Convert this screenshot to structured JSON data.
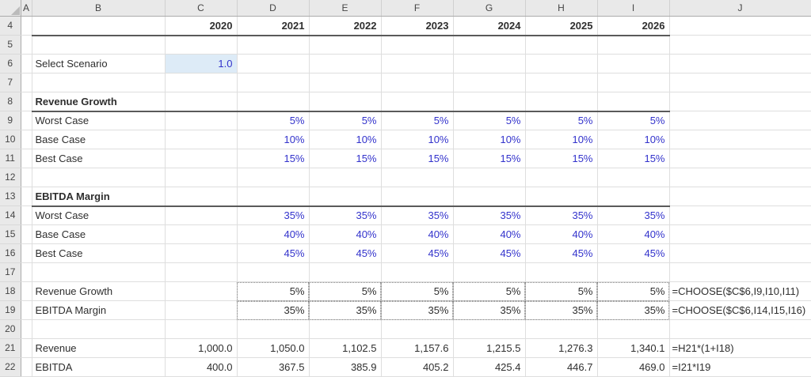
{
  "colors": {
    "input_blue": "#3333CC",
    "formula_text": "#2E2E2E",
    "scenario_cell_fill": "#DDEBF7",
    "header_bg": "#E9E9E9",
    "gridline": "#DEDEDE",
    "section_rule": "#5A5A5A"
  },
  "sheet": {
    "corner_icon": "select-all-triangle",
    "column_headers": [
      "A",
      "B",
      "C",
      "D",
      "E",
      "F",
      "G",
      "H",
      "I",
      "J"
    ],
    "rows": [
      {
        "num": "4",
        "cls": "rule",
        "cells": [
          {
            "col": "C",
            "text": "2020",
            "cls": "num bold"
          },
          {
            "col": "D",
            "text": "2021",
            "cls": "num bold"
          },
          {
            "col": "E",
            "text": "2022",
            "cls": "num bold"
          },
          {
            "col": "F",
            "text": "2023",
            "cls": "num bold"
          },
          {
            "col": "G",
            "text": "2024",
            "cls": "num bold"
          },
          {
            "col": "H",
            "text": "2025",
            "cls": "num bold"
          },
          {
            "col": "I",
            "text": "2026",
            "cls": "num bold"
          }
        ]
      },
      {
        "num": "5",
        "cells": []
      },
      {
        "num": "6",
        "cells": [
          {
            "col": "B",
            "text": "Select Scenario",
            "cls": "label"
          },
          {
            "col": "C",
            "text": "1.0",
            "cls": "num blue fill"
          }
        ]
      },
      {
        "num": "7",
        "cells": []
      },
      {
        "num": "8",
        "cls": "rule",
        "cells": [
          {
            "col": "B",
            "text": "Revenue Growth",
            "cls": "label bold"
          }
        ]
      },
      {
        "num": "9",
        "cells": [
          {
            "col": "B",
            "text": "Worst Case",
            "cls": "label"
          },
          {
            "col": "D",
            "text": "5%",
            "cls": "num blue"
          },
          {
            "col": "E",
            "text": "5%",
            "cls": "num blue"
          },
          {
            "col": "F",
            "text": "5%",
            "cls": "num blue"
          },
          {
            "col": "G",
            "text": "5%",
            "cls": "num blue"
          },
          {
            "col": "H",
            "text": "5%",
            "cls": "num blue"
          },
          {
            "col": "I",
            "text": "5%",
            "cls": "num blue"
          }
        ]
      },
      {
        "num": "10",
        "cells": [
          {
            "col": "B",
            "text": "Base Case",
            "cls": "label"
          },
          {
            "col": "D",
            "text": "10%",
            "cls": "num blue"
          },
          {
            "col": "E",
            "text": "10%",
            "cls": "num blue"
          },
          {
            "col": "F",
            "text": "10%",
            "cls": "num blue"
          },
          {
            "col": "G",
            "text": "10%",
            "cls": "num blue"
          },
          {
            "col": "H",
            "text": "10%",
            "cls": "num blue"
          },
          {
            "col": "I",
            "text": "10%",
            "cls": "num blue"
          }
        ]
      },
      {
        "num": "11",
        "cells": [
          {
            "col": "B",
            "text": "Best Case",
            "cls": "label"
          },
          {
            "col": "D",
            "text": "15%",
            "cls": "num blue"
          },
          {
            "col": "E",
            "text": "15%",
            "cls": "num blue"
          },
          {
            "col": "F",
            "text": "15%",
            "cls": "num blue"
          },
          {
            "col": "G",
            "text": "15%",
            "cls": "num blue"
          },
          {
            "col": "H",
            "text": "15%",
            "cls": "num blue"
          },
          {
            "col": "I",
            "text": "15%",
            "cls": "num blue"
          }
        ]
      },
      {
        "num": "12",
        "cells": []
      },
      {
        "num": "13",
        "cls": "rule",
        "cells": [
          {
            "col": "B",
            "text": "EBITDA Margin",
            "cls": "label bold"
          }
        ]
      },
      {
        "num": "14",
        "cells": [
          {
            "col": "B",
            "text": "Worst Case",
            "cls": "label"
          },
          {
            "col": "D",
            "text": "35%",
            "cls": "num blue"
          },
          {
            "col": "E",
            "text": "35%",
            "cls": "num blue"
          },
          {
            "col": "F",
            "text": "35%",
            "cls": "num blue"
          },
          {
            "col": "G",
            "text": "35%",
            "cls": "num blue"
          },
          {
            "col": "H",
            "text": "35%",
            "cls": "num blue"
          },
          {
            "col": "I",
            "text": "35%",
            "cls": "num blue"
          }
        ]
      },
      {
        "num": "15",
        "cells": [
          {
            "col": "B",
            "text": "Base Case",
            "cls": "label"
          },
          {
            "col": "D",
            "text": "40%",
            "cls": "num blue"
          },
          {
            "col": "E",
            "text": "40%",
            "cls": "num blue"
          },
          {
            "col": "F",
            "text": "40%",
            "cls": "num blue"
          },
          {
            "col": "G",
            "text": "40%",
            "cls": "num blue"
          },
          {
            "col": "H",
            "text": "40%",
            "cls": "num blue"
          },
          {
            "col": "I",
            "text": "40%",
            "cls": "num blue"
          }
        ]
      },
      {
        "num": "16",
        "cells": [
          {
            "col": "B",
            "text": "Best Case",
            "cls": "label"
          },
          {
            "col": "D",
            "text": "45%",
            "cls": "num blue"
          },
          {
            "col": "E",
            "text": "45%",
            "cls": "num blue"
          },
          {
            "col": "F",
            "text": "45%",
            "cls": "num blue"
          },
          {
            "col": "G",
            "text": "45%",
            "cls": "num blue"
          },
          {
            "col": "H",
            "text": "45%",
            "cls": "num blue"
          },
          {
            "col": "I",
            "text": "45%",
            "cls": "num blue"
          }
        ]
      },
      {
        "num": "17",
        "cells": []
      },
      {
        "num": "18",
        "cells": [
          {
            "col": "B",
            "text": "Revenue Growth",
            "cls": "label"
          },
          {
            "col": "D",
            "text": "5%",
            "cls": "num dotted"
          },
          {
            "col": "E",
            "text": "5%",
            "cls": "num dotted"
          },
          {
            "col": "F",
            "text": "5%",
            "cls": "num dotted"
          },
          {
            "col": "G",
            "text": "5%",
            "cls": "num dotted"
          },
          {
            "col": "H",
            "text": "5%",
            "cls": "num dotted"
          },
          {
            "col": "I",
            "text": "5%",
            "cls": "num dotted"
          },
          {
            "col": "J",
            "text": "=CHOOSE($C$6,I9,I10,I11)",
            "cls": "formula"
          }
        ]
      },
      {
        "num": "19",
        "cells": [
          {
            "col": "B",
            "text": "EBITDA Margin",
            "cls": "label"
          },
          {
            "col": "D",
            "text": "35%",
            "cls": "num dotted"
          },
          {
            "col": "E",
            "text": "35%",
            "cls": "num dotted"
          },
          {
            "col": "F",
            "text": "35%",
            "cls": "num dotted"
          },
          {
            "col": "G",
            "text": "35%",
            "cls": "num dotted"
          },
          {
            "col": "H",
            "text": "35%",
            "cls": "num dotted"
          },
          {
            "col": "I",
            "text": "35%",
            "cls": "num dotted"
          },
          {
            "col": "J",
            "text": "=CHOOSE($C$6,I14,I15,I16)",
            "cls": "formula"
          }
        ]
      },
      {
        "num": "20",
        "cells": []
      },
      {
        "num": "21",
        "cells": [
          {
            "col": "B",
            "text": "Revenue",
            "cls": "label"
          },
          {
            "col": "C",
            "text": "1,000.0",
            "cls": "num"
          },
          {
            "col": "D",
            "text": "1,050.0",
            "cls": "num"
          },
          {
            "col": "E",
            "text": "1,102.5",
            "cls": "num"
          },
          {
            "col": "F",
            "text": "1,157.6",
            "cls": "num"
          },
          {
            "col": "G",
            "text": "1,215.5",
            "cls": "num"
          },
          {
            "col": "H",
            "text": "1,276.3",
            "cls": "num"
          },
          {
            "col": "I",
            "text": "1,340.1",
            "cls": "num"
          },
          {
            "col": "J",
            "text": "=H21*(1+I18)",
            "cls": "formula"
          }
        ]
      },
      {
        "num": "22",
        "cells": [
          {
            "col": "B",
            "text": "EBITDA",
            "cls": "label"
          },
          {
            "col": "C",
            "text": "400.0",
            "cls": "num"
          },
          {
            "col": "D",
            "text": "367.5",
            "cls": "num"
          },
          {
            "col": "E",
            "text": "385.9",
            "cls": "num"
          },
          {
            "col": "F",
            "text": "405.2",
            "cls": "num"
          },
          {
            "col": "G",
            "text": "425.4",
            "cls": "num"
          },
          {
            "col": "H",
            "text": "446.7",
            "cls": "num"
          },
          {
            "col": "I",
            "text": "469.0",
            "cls": "num"
          },
          {
            "col": "J",
            "text": "=I21*I19",
            "cls": "formula"
          }
        ]
      }
    ]
  }
}
